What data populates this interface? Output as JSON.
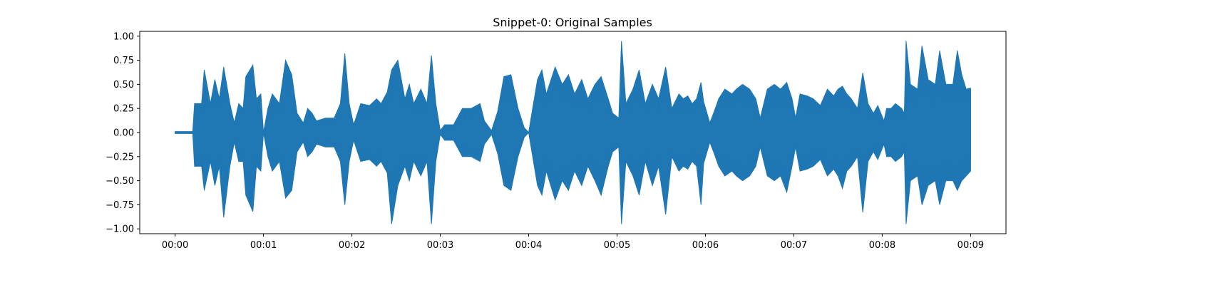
{
  "chart_data": {
    "type": "line",
    "title": "Snippet-0: Original Samples",
    "xlabel": "",
    "ylabel": "",
    "xlim": [
      -0.4,
      9.4
    ],
    "ylim": [
      -1.05,
      1.05
    ],
    "grid": false,
    "legend": "none",
    "x_tick_values": [
      0,
      1,
      2,
      3,
      4,
      5,
      6,
      7,
      8,
      9
    ],
    "x_tick_labels": [
      "00:00",
      "00:01",
      "00:02",
      "00:03",
      "00:04",
      "00:05",
      "00:06",
      "00:07",
      "00:08",
      "00:09"
    ],
    "y_tick_values": [
      1.0,
      0.75,
      0.5,
      0.25,
      0.0,
      -0.25,
      -0.5,
      -0.75,
      -1.0
    ],
    "y_tick_labels": [
      "1.00",
      "0.75",
      "0.50",
      "0.25",
      "0.00",
      "−0.25",
      "−0.50",
      "−0.75",
      "−1.00"
    ],
    "series": [
      {
        "color": "#1f77b4",
        "x_range": [
          0,
          9
        ],
        "envelope_upper": [
          [
            0.0,
            0.01
          ],
          [
            0.2,
            0.01
          ],
          [
            0.22,
            0.3
          ],
          [
            0.3,
            0.3
          ],
          [
            0.33,
            0.65
          ],
          [
            0.4,
            0.3
          ],
          [
            0.45,
            0.55
          ],
          [
            0.5,
            0.35
          ],
          [
            0.55,
            0.68
          ],
          [
            0.62,
            0.3
          ],
          [
            0.67,
            0.1
          ],
          [
            0.72,
            0.3
          ],
          [
            0.77,
            0.25
          ],
          [
            0.8,
            0.58
          ],
          [
            0.88,
            0.7
          ],
          [
            0.92,
            0.35
          ],
          [
            0.97,
            0.4
          ],
          [
            1.0,
            0.0
          ],
          [
            1.05,
            0.25
          ],
          [
            1.1,
            0.4
          ],
          [
            1.18,
            0.3
          ],
          [
            1.25,
            0.75
          ],
          [
            1.32,
            0.6
          ],
          [
            1.38,
            0.2
          ],
          [
            1.45,
            0.1
          ],
          [
            1.5,
            0.25
          ],
          [
            1.55,
            0.2
          ],
          [
            1.6,
            0.12
          ],
          [
            1.7,
            0.15
          ],
          [
            1.8,
            0.15
          ],
          [
            1.87,
            0.3
          ],
          [
            1.92,
            0.82
          ],
          [
            1.97,
            0.3
          ],
          [
            2.02,
            0.08
          ],
          [
            2.1,
            0.3
          ],
          [
            2.2,
            0.28
          ],
          [
            2.28,
            0.35
          ],
          [
            2.33,
            0.3
          ],
          [
            2.4,
            0.42
          ],
          [
            2.45,
            0.65
          ],
          [
            2.52,
            0.75
          ],
          [
            2.6,
            0.35
          ],
          [
            2.65,
            0.5
          ],
          [
            2.7,
            0.3
          ],
          [
            2.78,
            0.45
          ],
          [
            2.85,
            0.3
          ],
          [
            2.9,
            0.8
          ],
          [
            2.95,
            0.3
          ],
          [
            3.0,
            0.02
          ],
          [
            3.05,
            0.08
          ],
          [
            3.15,
            0.08
          ],
          [
            3.25,
            0.25
          ],
          [
            3.35,
            0.25
          ],
          [
            3.45,
            0.3
          ],
          [
            3.5,
            0.12
          ],
          [
            3.58,
            0.02
          ],
          [
            3.65,
            0.22
          ],
          [
            3.72,
            0.58
          ],
          [
            3.8,
            0.6
          ],
          [
            3.88,
            0.25
          ],
          [
            3.95,
            0.05
          ],
          [
            4.0,
            0.0
          ],
          [
            4.1,
            0.55
          ],
          [
            4.15,
            0.65
          ],
          [
            4.2,
            0.4
          ],
          [
            4.3,
            0.68
          ],
          [
            4.38,
            0.5
          ],
          [
            4.45,
            0.6
          ],
          [
            4.52,
            0.4
          ],
          [
            4.6,
            0.55
          ],
          [
            4.67,
            0.35
          ],
          [
            4.75,
            0.5
          ],
          [
            4.82,
            0.58
          ],
          [
            4.9,
            0.35
          ],
          [
            4.95,
            0.2
          ],
          [
            5.02,
            0.15
          ],
          [
            5.05,
            0.95
          ],
          [
            5.1,
            0.3
          ],
          [
            5.18,
            0.45
          ],
          [
            5.25,
            0.65
          ],
          [
            5.32,
            0.3
          ],
          [
            5.4,
            0.5
          ],
          [
            5.47,
            0.35
          ],
          [
            5.55,
            0.68
          ],
          [
            5.62,
            0.25
          ],
          [
            5.7,
            0.4
          ],
          [
            5.75,
            0.35
          ],
          [
            5.8,
            0.38
          ],
          [
            5.85,
            0.3
          ],
          [
            5.9,
            0.35
          ],
          [
            5.95,
            0.52
          ],
          [
            5.98,
            0.32
          ],
          [
            6.05,
            0.1
          ],
          [
            6.1,
            0.22
          ],
          [
            6.15,
            0.35
          ],
          [
            6.22,
            0.45
          ],
          [
            6.3,
            0.4
          ],
          [
            6.35,
            0.45
          ],
          [
            6.42,
            0.5
          ],
          [
            6.5,
            0.45
          ],
          [
            6.57,
            0.35
          ],
          [
            6.62,
            0.15
          ],
          [
            6.7,
            0.45
          ],
          [
            6.78,
            0.5
          ],
          [
            6.85,
            0.45
          ],
          [
            6.92,
            0.52
          ],
          [
            6.98,
            0.35
          ],
          [
            7.02,
            0.15
          ],
          [
            7.07,
            0.4
          ],
          [
            7.15,
            0.38
          ],
          [
            7.22,
            0.35
          ],
          [
            7.3,
            0.28
          ],
          [
            7.38,
            0.45
          ],
          [
            7.45,
            0.38
          ],
          [
            7.5,
            0.45
          ],
          [
            7.55,
            0.48
          ],
          [
            7.6,
            0.4
          ],
          [
            7.65,
            0.35
          ],
          [
            7.72,
            0.25
          ],
          [
            7.78,
            0.62
          ],
          [
            7.84,
            0.3
          ],
          [
            7.9,
            0.2
          ],
          [
            7.95,
            0.28
          ],
          [
            8.02,
            0.12
          ],
          [
            8.05,
            0.25
          ],
          [
            8.1,
            0.25
          ],
          [
            8.15,
            0.3
          ],
          [
            8.22,
            0.25
          ],
          [
            8.25,
            0.2
          ],
          [
            8.27,
            0.95
          ],
          [
            8.32,
            0.5
          ],
          [
            8.4,
            0.45
          ],
          [
            8.45,
            0.9
          ],
          [
            8.52,
            0.55
          ],
          [
            8.6,
            0.5
          ],
          [
            8.65,
            0.85
          ],
          [
            8.72,
            0.5
          ],
          [
            8.8,
            0.5
          ],
          [
            8.85,
            0.85
          ],
          [
            8.9,
            0.6
          ],
          [
            8.95,
            0.45
          ],
          [
            9.0,
            0.46
          ]
        ],
        "envelope_lower": [
          [
            0.0,
            -0.01
          ],
          [
            0.2,
            -0.01
          ],
          [
            0.22,
            -0.35
          ],
          [
            0.3,
            -0.35
          ],
          [
            0.33,
            -0.6
          ],
          [
            0.4,
            -0.3
          ],
          [
            0.45,
            -0.55
          ],
          [
            0.5,
            -0.35
          ],
          [
            0.55,
            -0.88
          ],
          [
            0.62,
            -0.35
          ],
          [
            0.67,
            -0.1
          ],
          [
            0.72,
            -0.3
          ],
          [
            0.77,
            -0.3
          ],
          [
            0.8,
            -0.65
          ],
          [
            0.88,
            -0.82
          ],
          [
            0.92,
            -0.35
          ],
          [
            0.97,
            -0.4
          ],
          [
            1.0,
            0.0
          ],
          [
            1.05,
            -0.25
          ],
          [
            1.1,
            -0.4
          ],
          [
            1.18,
            -0.3
          ],
          [
            1.25,
            -0.68
          ],
          [
            1.32,
            -0.6
          ],
          [
            1.38,
            -0.2
          ],
          [
            1.45,
            -0.1
          ],
          [
            1.5,
            -0.25
          ],
          [
            1.55,
            -0.2
          ],
          [
            1.6,
            -0.12
          ],
          [
            1.7,
            -0.15
          ],
          [
            1.8,
            -0.15
          ],
          [
            1.87,
            -0.3
          ],
          [
            1.92,
            -0.75
          ],
          [
            1.97,
            -0.3
          ],
          [
            2.02,
            -0.08
          ],
          [
            2.1,
            -0.3
          ],
          [
            2.2,
            -0.28
          ],
          [
            2.28,
            -0.35
          ],
          [
            2.33,
            -0.3
          ],
          [
            2.4,
            -0.42
          ],
          [
            2.45,
            -0.95
          ],
          [
            2.52,
            -0.55
          ],
          [
            2.6,
            -0.35
          ],
          [
            2.65,
            -0.5
          ],
          [
            2.7,
            -0.3
          ],
          [
            2.78,
            -0.45
          ],
          [
            2.85,
            -0.3
          ],
          [
            2.9,
            -0.95
          ],
          [
            2.95,
            -0.3
          ],
          [
            3.0,
            -0.02
          ],
          [
            3.05,
            -0.08
          ],
          [
            3.15,
            -0.08
          ],
          [
            3.25,
            -0.25
          ],
          [
            3.35,
            -0.25
          ],
          [
            3.45,
            -0.3
          ],
          [
            3.5,
            -0.12
          ],
          [
            3.58,
            -0.02
          ],
          [
            3.65,
            -0.22
          ],
          [
            3.72,
            -0.55
          ],
          [
            3.8,
            -0.6
          ],
          [
            3.88,
            -0.25
          ],
          [
            3.95,
            -0.05
          ],
          [
            4.0,
            0.0
          ],
          [
            4.1,
            -0.55
          ],
          [
            4.15,
            -0.65
          ],
          [
            4.2,
            -0.4
          ],
          [
            4.3,
            -0.7
          ],
          [
            4.38,
            -0.5
          ],
          [
            4.45,
            -0.6
          ],
          [
            4.52,
            -0.4
          ],
          [
            4.6,
            -0.55
          ],
          [
            4.67,
            -0.35
          ],
          [
            4.75,
            -0.5
          ],
          [
            4.82,
            -0.65
          ],
          [
            4.9,
            -0.35
          ],
          [
            4.95,
            -0.2
          ],
          [
            5.02,
            -0.15
          ],
          [
            5.05,
            -0.95
          ],
          [
            5.1,
            -0.3
          ],
          [
            5.18,
            -0.45
          ],
          [
            5.25,
            -0.65
          ],
          [
            5.32,
            -0.3
          ],
          [
            5.4,
            -0.55
          ],
          [
            5.47,
            -0.35
          ],
          [
            5.55,
            -0.85
          ],
          [
            5.62,
            -0.25
          ],
          [
            5.7,
            -0.4
          ],
          [
            5.75,
            -0.35
          ],
          [
            5.8,
            -0.38
          ],
          [
            5.85,
            -0.3
          ],
          [
            5.9,
            -0.35
          ],
          [
            5.95,
            -0.75
          ],
          [
            5.98,
            -0.32
          ],
          [
            6.05,
            -0.1
          ],
          [
            6.1,
            -0.22
          ],
          [
            6.15,
            -0.35
          ],
          [
            6.22,
            -0.45
          ],
          [
            6.3,
            -0.4
          ],
          [
            6.35,
            -0.45
          ],
          [
            6.42,
            -0.5
          ],
          [
            6.5,
            -0.45
          ],
          [
            6.57,
            -0.35
          ],
          [
            6.62,
            -0.15
          ],
          [
            6.7,
            -0.45
          ],
          [
            6.78,
            -0.5
          ],
          [
            6.85,
            -0.45
          ],
          [
            6.92,
            -0.62
          ],
          [
            6.98,
            -0.35
          ],
          [
            7.02,
            -0.15
          ],
          [
            7.07,
            -0.4
          ],
          [
            7.15,
            -0.38
          ],
          [
            7.22,
            -0.35
          ],
          [
            7.3,
            -0.28
          ],
          [
            7.38,
            -0.45
          ],
          [
            7.45,
            -0.38
          ],
          [
            7.5,
            -0.45
          ],
          [
            7.55,
            -0.58
          ],
          [
            7.6,
            -0.4
          ],
          [
            7.65,
            -0.35
          ],
          [
            7.72,
            -0.25
          ],
          [
            7.78,
            -0.83
          ],
          [
            7.84,
            -0.3
          ],
          [
            7.9,
            -0.2
          ],
          [
            7.95,
            -0.28
          ],
          [
            8.02,
            -0.12
          ],
          [
            8.05,
            -0.25
          ],
          [
            8.1,
            -0.25
          ],
          [
            8.15,
            -0.3
          ],
          [
            8.22,
            -0.25
          ],
          [
            8.25,
            -0.2
          ],
          [
            8.27,
            -0.95
          ],
          [
            8.32,
            -0.5
          ],
          [
            8.4,
            -0.45
          ],
          [
            8.45,
            -0.75
          ],
          [
            8.52,
            -0.55
          ],
          [
            8.6,
            -0.5
          ],
          [
            8.65,
            -0.75
          ],
          [
            8.72,
            -0.5
          ],
          [
            8.8,
            -0.5
          ],
          [
            8.85,
            -0.6
          ],
          [
            8.9,
            -0.5
          ],
          [
            8.95,
            -0.45
          ],
          [
            9.0,
            -0.4
          ]
        ]
      }
    ]
  }
}
